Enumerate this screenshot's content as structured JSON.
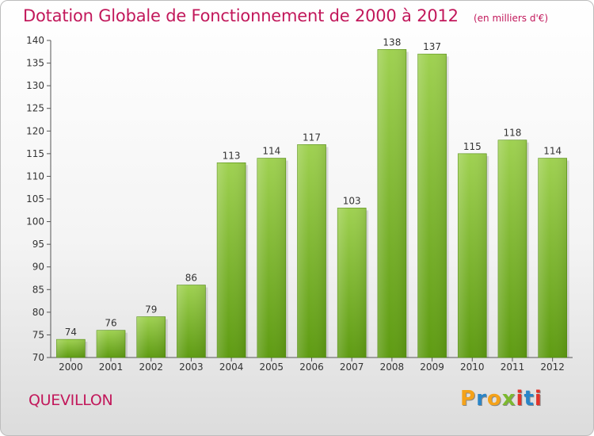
{
  "header": {
    "title": "Dotation Globale de Fonctionnement de 2000 à 2012",
    "subtitle": "(en milliers d'€)"
  },
  "footer": {
    "commune": "QUEVILLON",
    "logo_text": "Proxiti"
  },
  "colors": {
    "title": "#c2185b",
    "bar_top": "#9fd151",
    "bar_bottom": "#5e9b12",
    "logo": [
      "#f4a21a",
      "#2a85c8",
      "#f4a21a",
      "#7cb82f",
      "#e2342b",
      "#2a85c8",
      "#e2342b"
    ]
  },
  "chart_data": {
    "type": "bar",
    "title": "Dotation Globale de Fonctionnement de 2000 à 2012",
    "subtitle": "(en milliers d'€)",
    "categories": [
      "2000",
      "2001",
      "2002",
      "2003",
      "2004",
      "2005",
      "2006",
      "2007",
      "2008",
      "2009",
      "2010",
      "2011",
      "2012"
    ],
    "values": [
      74,
      76,
      79,
      86,
      113,
      114,
      117,
      103,
      138,
      137,
      115,
      118,
      114
    ],
    "ylim": [
      70,
      140
    ],
    "yticks": [
      70,
      75,
      80,
      85,
      90,
      95,
      100,
      105,
      110,
      115,
      120,
      125,
      130,
      135,
      140
    ],
    "grid": false,
    "data_labels": true
  }
}
